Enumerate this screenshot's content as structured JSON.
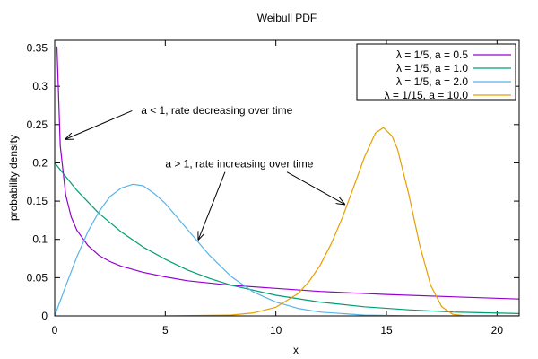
{
  "chart_data": {
    "type": "line",
    "title": "Weibull PDF",
    "xlabel": "x",
    "ylabel": "probability density",
    "xlim": [
      0,
      21
    ],
    "ylim": [
      0,
      0.36
    ],
    "xticks": [
      0,
      5,
      10,
      15,
      20
    ],
    "yticks": [
      0,
      0.05,
      0.1,
      0.15,
      0.2,
      0.25,
      0.3,
      0.35
    ],
    "xtick_labels": [
      "0",
      "5",
      "10",
      "15",
      "20"
    ],
    "ytick_labels": [
      "0",
      "0.05",
      "0.1",
      "0.15",
      "0.2",
      "0.25",
      "0.3",
      "0.35"
    ],
    "grid": false,
    "legend_position": "top-right",
    "series": [
      {
        "name": "λ = 1/5, a = 0.5",
        "color": "#9400d3",
        "x": [
          0.1,
          0.25,
          0.5,
          0.75,
          1,
          1.5,
          2,
          2.5,
          3,
          4,
          5,
          6,
          8,
          10,
          12,
          15,
          18,
          21
        ],
        "y": [
          0.352,
          0.222,
          0.158,
          0.129,
          0.112,
          0.092,
          0.079,
          0.071,
          0.065,
          0.057,
          0.051,
          0.046,
          0.04,
          0.036,
          0.032,
          0.028,
          0.025,
          0.022
        ]
      },
      {
        "name": "λ = 1/5, a = 1.0",
        "color": "#009e73",
        "x": [
          0,
          1,
          2,
          3,
          4,
          5,
          6,
          7,
          8,
          10,
          12,
          14,
          16,
          18,
          21
        ],
        "y": [
          0.2,
          0.164,
          0.134,
          0.11,
          0.09,
          0.074,
          0.06,
          0.049,
          0.04,
          0.027,
          0.018,
          0.012,
          0.008,
          0.005,
          0.003
        ]
      },
      {
        "name": "λ = 1/5, a = 2.0",
        "color": "#56b4e9",
        "x": [
          0,
          0.5,
          1,
          1.5,
          2,
          2.5,
          3,
          3.54,
          4,
          4.5,
          5,
          6,
          7,
          8,
          9,
          10,
          11,
          12,
          14,
          16,
          18,
          21
        ],
        "y": [
          0,
          0.039,
          0.077,
          0.11,
          0.136,
          0.156,
          0.167,
          0.172,
          0.17,
          0.16,
          0.147,
          0.113,
          0.079,
          0.051,
          0.031,
          0.018,
          0.0098,
          0.005,
          0.0011,
          0.0002,
          0,
          0
        ]
      },
      {
        "name": "λ = 1/15, a = 10.0",
        "color": "#e69f00",
        "x": [
          5,
          8,
          9,
          10,
          11,
          11.5,
          12,
          12.5,
          13,
          13.5,
          14,
          14.5,
          14.86,
          15.25,
          15.5,
          16,
          16.5,
          17,
          17.5,
          18,
          18.5,
          19,
          20,
          21
        ],
        "y": [
          0,
          0.0012,
          0.004,
          0.0114,
          0.029,
          0.045,
          0.066,
          0.094,
          0.128,
          0.167,
          0.207,
          0.239,
          0.246,
          0.235,
          0.218,
          0.16,
          0.093,
          0.04,
          0.012,
          0.002,
          0.0003,
          0,
          0,
          0
        ]
      }
    ],
    "annotations": [
      {
        "text": "a < 1, rate decreasing over time",
        "text_at": [
          3.9,
          0.264
        ],
        "text_anchor": "start",
        "arrow_from": [
          3.5,
          0.268
        ],
        "arrow_to": [
          0.5,
          0.231
        ]
      },
      {
        "text": "a > 1, rate increasing over time",
        "text_at": [
          5.0,
          0.194
        ],
        "text_anchor": "start",
        "arrow_from": [
          7.7,
          0.188
        ],
        "arrow_to": [
          6.5,
          0.1
        ]
      },
      {
        "text_at": null,
        "arrow_from": [
          10.5,
          0.188
        ],
        "arrow_to": [
          13.1,
          0.146
        ]
      }
    ]
  }
}
